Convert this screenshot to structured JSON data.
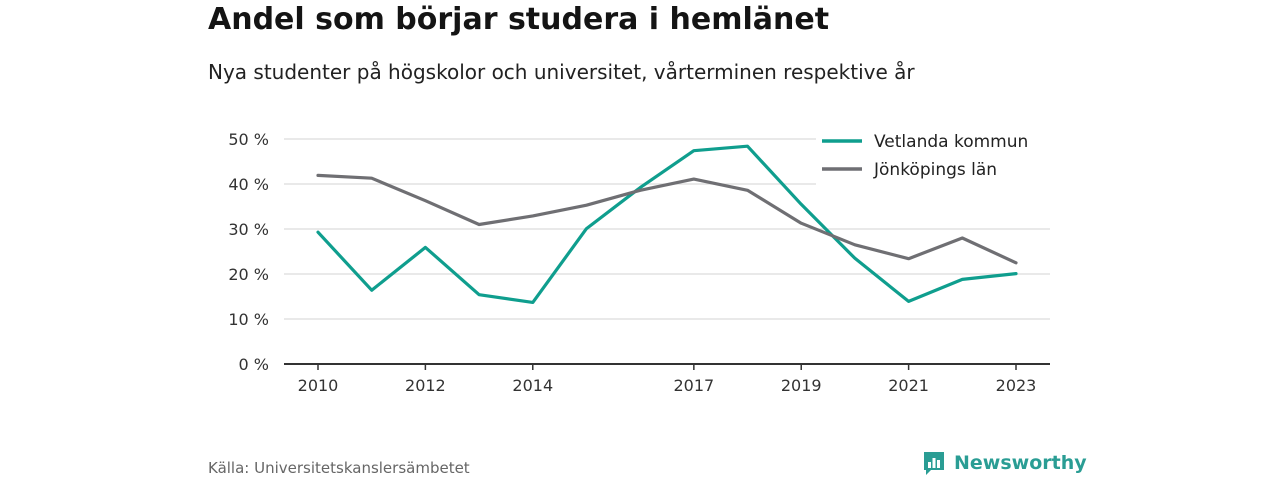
{
  "title": "Andel som börjar studera i hemlänet",
  "subtitle": "Nya studenter på högskolor och universitet, vårterminen respektive år",
  "source": "Källa: Universitetskanslersämbetet",
  "brand": {
    "name": "Newsworthy",
    "icon": "bar-chart-icon",
    "color": "#2a9d94"
  },
  "chart_data": {
    "type": "line",
    "x": [
      2010,
      2011,
      2012,
      2013,
      2014,
      2015,
      2016,
      2017,
      2018,
      2019,
      2020,
      2021,
      2022,
      2023
    ],
    "x_ticks": [
      "2010",
      "2012",
      "2014",
      "2017",
      "2019",
      "2021",
      "2023"
    ],
    "y_ticks": [
      "0 %",
      "10 %",
      "20 %",
      "30 %",
      "40 %",
      "50 %"
    ],
    "ylim": [
      0,
      50
    ],
    "grid": true,
    "legend_position": "top-right",
    "series": [
      {
        "name": "Vetlanda kommun",
        "color": "#0f9e8e",
        "values": [
          29.3,
          16.4,
          25.9,
          15.4,
          13.7,
          30.1,
          39.2,
          47.4,
          48.4,
          35.5,
          23.5,
          13.9,
          18.8,
          20.1
        ]
      },
      {
        "name": "Jönköpings län",
        "color": "#6f6f73",
        "values": [
          41.9,
          41.3,
          36.3,
          31.0,
          32.9,
          35.3,
          38.6,
          41.1,
          38.6,
          31.3,
          26.5,
          23.4,
          28.0,
          22.5
        ]
      }
    ]
  }
}
